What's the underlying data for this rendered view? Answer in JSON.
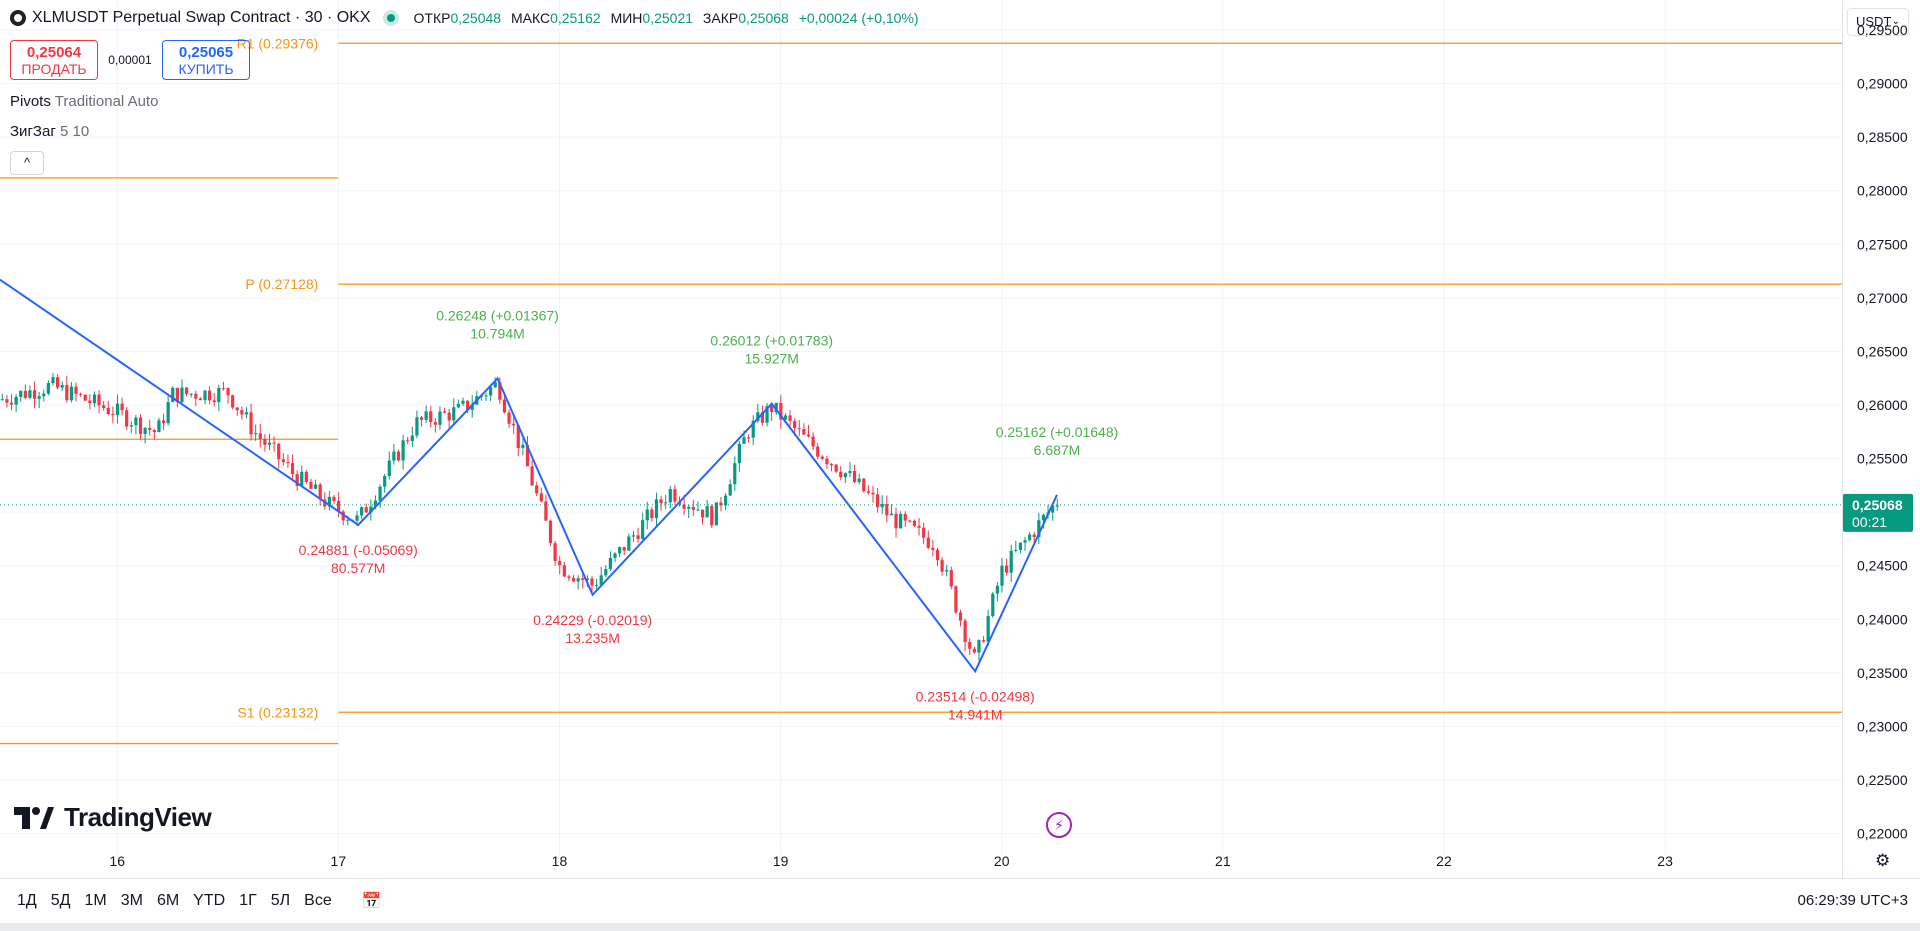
{
  "header": {
    "symbol_title": "XLMUSDT Perpetual Swap Contract · 30 · OKX",
    "open_label": "ОТКР",
    "open": "0,25048",
    "high_label": "МАКС",
    "high": "0,25162",
    "low_label": "МИН",
    "low": "0,25021",
    "close_label": "ЗАКР",
    "close": "0,25068",
    "change": "+0,00024 (+0,10%)",
    "currency": "USDT"
  },
  "trade": {
    "sell_price": "0,25064",
    "sell_label": "ПРОДАТЬ",
    "spread": "0,00001",
    "buy_price": "0,25065",
    "buy_label": "КУПИТЬ"
  },
  "indicators": [
    {
      "name": "Pivots",
      "params": "Traditional Auto"
    },
    {
      "name": "ЗигЗаг",
      "params": "5 10"
    }
  ],
  "brand": "TradingView",
  "bottom": {
    "ranges": [
      "1Д",
      "5Д",
      "1М",
      "3М",
      "6М",
      "YTD",
      "1Г",
      "5Л",
      "Все"
    ],
    "clock": "06:29:39 UTC+3"
  },
  "colors": {
    "up": "#089981",
    "down": "#f23645",
    "zigzag": "#2962ff",
    "pivot": "#f7931a"
  },
  "chart_data": {
    "type": "candlestick",
    "x_tick_labels": [
      "16",
      "17",
      "18",
      "19",
      "20",
      "21",
      "22",
      "23"
    ],
    "x_ticks_day": [
      16,
      17,
      18,
      19,
      20,
      21,
      22,
      23
    ],
    "x_range_day": [
      15.47,
      23.8
    ],
    "y_ticks": [
      "0,29500",
      "0,29000",
      "0,28500",
      "0,28000",
      "0,27500",
      "0,27000",
      "0,26500",
      "0,26000",
      "0,25500",
      "0,25000",
      "0,24500",
      "0,24000",
      "0,23500",
      "0,23000",
      "0,22500",
      "0,22000"
    ],
    "y_range": [
      0.218,
      0.2978
    ],
    "last_price": {
      "value": 0.25068,
      "label": "0,25068",
      "countdown": "00:21"
    },
    "pivots": [
      {
        "label": "R1 (0.29376)",
        "value": 0.29376,
        "from_day": 17.0,
        "to_day": 23.8
      },
      {
        "label": "P (0.27128)",
        "value": 0.27128,
        "from_day": 17.0,
        "to_day": 23.8
      },
      {
        "label": "S1 (0.23132)",
        "value": 0.23132,
        "from_day": 17.0,
        "to_day": 23.8
      },
      {
        "label": "",
        "value": 0.2812,
        "from_day": 15.47,
        "to_day": 17.0
      },
      {
        "label": "",
        "value": 0.2568,
        "from_day": 15.47,
        "to_day": 17.0
      },
      {
        "label": "",
        "value": 0.2284,
        "from_day": 15.47,
        "to_day": 17.0
      }
    ],
    "zigzag": [
      {
        "day": 15.47,
        "price": 0.2717
      },
      {
        "day": 17.09,
        "price": 0.24881,
        "price_label": "0.24881 (-0.05069)",
        "volume_label": "80.577M",
        "kind": "low"
      },
      {
        "day": 17.72,
        "price": 0.26248,
        "price_label": "0.26248 (+0.01367)",
        "volume_label": "10.794M",
        "kind": "high"
      },
      {
        "day": 18.15,
        "price": 0.24229,
        "price_label": "0.24229 (-0.02019)",
        "volume_label": "13.235M",
        "kind": "low"
      },
      {
        "day": 18.96,
        "price": 0.26012,
        "price_label": "0.26012 (+0.01783)",
        "volume_label": "15.927M",
        "kind": "high"
      },
      {
        "day": 19.88,
        "price": 0.23514,
        "price_label": "0.23514 (-0.02498)",
        "volume_label": "14.941M",
        "kind": "low"
      },
      {
        "day": 20.25,
        "price": 0.25162,
        "price_label": "0.25162 (+0.01648)",
        "volume_label": "6.687M",
        "kind": "high"
      }
    ],
    "candle_path_anchors": [
      [
        15.47,
        0.2605
      ],
      [
        15.7,
        0.2618
      ],
      [
        16.0,
        0.2593
      ],
      [
        16.18,
        0.2574
      ],
      [
        16.25,
        0.261
      ],
      [
        16.5,
        0.2612
      ],
      [
        16.62,
        0.2575
      ],
      [
        16.8,
        0.2535
      ],
      [
        16.95,
        0.2508
      ],
      [
        17.09,
        0.2492
      ],
      [
        17.35,
        0.2583
      ],
      [
        17.55,
        0.2595
      ],
      [
        17.72,
        0.262
      ],
      [
        17.85,
        0.2545
      ],
      [
        18.0,
        0.245
      ],
      [
        18.15,
        0.2432
      ],
      [
        18.5,
        0.252
      ],
      [
        18.7,
        0.2495
      ],
      [
        18.85,
        0.2575
      ],
      [
        18.96,
        0.2598
      ],
      [
        19.1,
        0.257
      ],
      [
        19.3,
        0.2535
      ],
      [
        19.5,
        0.2495
      ],
      [
        19.7,
        0.247
      ],
      [
        19.88,
        0.236
      ],
      [
        20.0,
        0.2445
      ],
      [
        20.25,
        0.251
      ]
    ]
  }
}
